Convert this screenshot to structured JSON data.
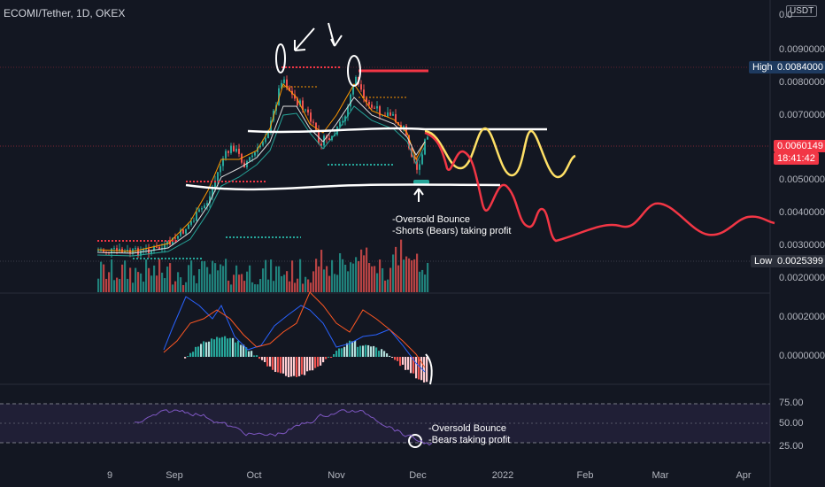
{
  "header": {
    "symbol": "ECOMI/Tether, 1D, OKEX",
    "currency_badge": "USDT"
  },
  "price_axis": {
    "ticks": [
      "0.0090000",
      "0.0080000",
      "0.0070000",
      "0.0050000",
      "0.0040000",
      "0.0030000",
      "0.0020000"
    ],
    "top_partial": "0.0",
    "high_label": "High",
    "high_value": "0.0084000",
    "current_value": "0.0060149",
    "countdown": "18:41:42",
    "low_label": "Low",
    "low_value": "0.0025399"
  },
  "macd_axis": {
    "ticks": [
      "0.0002000",
      "0.0000000"
    ]
  },
  "rsi_axis": {
    "ticks": [
      "75.00",
      "50.00",
      "25.00"
    ]
  },
  "time_axis": {
    "labels": [
      "9",
      "Sep",
      "Oct",
      "Nov",
      "Dec",
      "2022",
      "Feb",
      "Mar",
      "Apr"
    ]
  },
  "annotations": {
    "main_note": [
      "-Oversold Bounce",
      "-Shorts (Bears) taking profit"
    ],
    "rsi_note": [
      "-Oversold Bounce",
      "-Bears taking profit"
    ]
  },
  "colors": {
    "background": "#131722",
    "up": "#26a69a",
    "down": "#ef5350",
    "high_tag": "#1e3a5f",
    "current_tag": "#f23645",
    "wave_yellow": "#ffe066",
    "wave_red": "#f23645"
  }
}
